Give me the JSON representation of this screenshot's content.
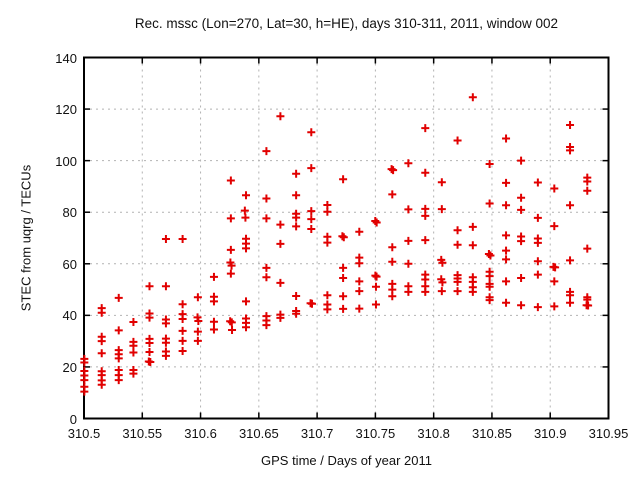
{
  "title": "Rec. mssc (Lon=270, Lat=30, h=HE), days 310-311, 2011, window 002",
  "x_axis": {
    "label": "GPS time / Days of year 2011",
    "min": 310.5,
    "max": 310.95,
    "tick_labels": [
      "310.5",
      "310.55",
      "310.6",
      "310.65",
      "310.7",
      "310.75",
      "310.8",
      "310.85",
      "310.9",
      "310.95"
    ],
    "tick_values": [
      310.5,
      310.55,
      310.6,
      310.65,
      310.7,
      310.75,
      310.8,
      310.85,
      310.9,
      310.95
    ]
  },
  "y_axis": {
    "label": "STEC from uqrg / TECUs",
    "min": 0,
    "max": 140,
    "tick_labels": [
      "0",
      "20",
      "40",
      "60",
      "80",
      "100",
      "120",
      "140"
    ],
    "tick_values": [
      0,
      20,
      40,
      60,
      80,
      100,
      120,
      140
    ]
  },
  "colors": {
    "marker": "#e10000",
    "grid": "#b2b2b2",
    "axis": "#000000",
    "background": "#ffffff",
    "text": "#111111"
  },
  "chart_data": {
    "type": "scatter",
    "marker": "plus",
    "title": "Rec. mssc (Lon=270, Lat=30, h=HE), days 310-311, 2011, window 002",
    "xlabel": "GPS time / Days of year 2011",
    "ylabel": "STEC from uqrg / TECUs",
    "xlim": [
      310.5,
      310.95
    ],
    "ylim": [
      0,
      140
    ],
    "grid": true,
    "legend": "none",
    "points": [
      [
        310.5003,
        23.1
      ],
      [
        310.5003,
        21.7
      ],
      [
        310.5003,
        18.4
      ],
      [
        310.5003,
        16.7
      ],
      [
        310.5003,
        14.9
      ],
      [
        310.5003,
        12.3
      ],
      [
        310.5003,
        10.4
      ],
      [
        310.5152,
        42.8
      ],
      [
        310.5152,
        41.0
      ],
      [
        310.5152,
        31.7
      ],
      [
        310.5152,
        30.0
      ],
      [
        310.5152,
        25.3
      ],
      [
        310.5152,
        18.3
      ],
      [
        310.5152,
        16.8
      ],
      [
        310.5152,
        14.8
      ],
      [
        310.5152,
        13.1
      ],
      [
        310.5298,
        46.8
      ],
      [
        310.5298,
        34.2
      ],
      [
        310.5298,
        26.5
      ],
      [
        310.5298,
        24.9
      ],
      [
        310.5298,
        23.3
      ],
      [
        310.5298,
        18.8
      ],
      [
        310.5298,
        16.8
      ],
      [
        310.5298,
        14.9
      ],
      [
        310.5424,
        37.4
      ],
      [
        310.5424,
        29.7
      ],
      [
        310.5424,
        28.2
      ],
      [
        310.5424,
        25.6
      ],
      [
        310.5424,
        18.8
      ],
      [
        310.5424,
        17.4
      ],
      [
        310.5562,
        51.3
      ],
      [
        310.5562,
        40.7
      ],
      [
        310.5562,
        39.1
      ],
      [
        310.5562,
        30.9
      ],
      [
        310.5562,
        29.3
      ],
      [
        310.5562,
        25.8
      ],
      [
        310.5556,
        22.1
      ],
      [
        310.5569,
        21.9
      ],
      [
        310.5703,
        69.6
      ],
      [
        310.5703,
        51.3
      ],
      [
        310.5703,
        38.4
      ],
      [
        310.5703,
        36.9
      ],
      [
        310.5703,
        31.0
      ],
      [
        310.5703,
        29.4
      ],
      [
        310.5703,
        26.0
      ],
      [
        310.5703,
        24.3
      ],
      [
        310.5846,
        69.6
      ],
      [
        310.5846,
        44.3
      ],
      [
        310.5846,
        40.5
      ],
      [
        310.5846,
        38.6
      ],
      [
        310.5846,
        34.0
      ],
      [
        310.5846,
        30.1
      ],
      [
        310.5846,
        26.2
      ],
      [
        310.5977,
        47.0
      ],
      [
        310.5974,
        39.2
      ],
      [
        310.5981,
        37.8
      ],
      [
        310.5977,
        33.7
      ],
      [
        310.5977,
        30.1
      ],
      [
        310.6115,
        54.9
      ],
      [
        310.6115,
        47.2
      ],
      [
        310.6115,
        45.4
      ],
      [
        310.6115,
        37.5
      ],
      [
        310.6115,
        34.5
      ],
      [
        310.626,
        92.3
      ],
      [
        310.626,
        77.6
      ],
      [
        310.626,
        65.4
      ],
      [
        310.6256,
        60.5
      ],
      [
        310.6266,
        59.3
      ],
      [
        310.626,
        56.2
      ],
      [
        310.6254,
        37.7
      ],
      [
        310.6268,
        37.3
      ],
      [
        310.627,
        34.3
      ],
      [
        310.639,
        86.6
      ],
      [
        310.638,
        80.6
      ],
      [
        310.6385,
        77.9
      ],
      [
        310.639,
        69.7
      ],
      [
        310.639,
        67.8
      ],
      [
        310.639,
        66.0
      ],
      [
        310.639,
        45.4
      ],
      [
        310.639,
        38.8
      ],
      [
        310.639,
        37.1
      ],
      [
        310.639,
        35.4
      ],
      [
        310.6565,
        103.7
      ],
      [
        310.6565,
        85.3
      ],
      [
        310.6565,
        77.6
      ],
      [
        310.6565,
        58.4
      ],
      [
        310.6565,
        54.8
      ],
      [
        310.6565,
        39.7
      ],
      [
        310.6565,
        38.0
      ],
      [
        310.6565,
        36.2
      ],
      [
        310.6685,
        117.2
      ],
      [
        310.6685,
        75.2
      ],
      [
        310.6685,
        67.7
      ],
      [
        310.6685,
        52.6
      ],
      [
        310.6685,
        40.3
      ],
      [
        310.6685,
        39.0
      ],
      [
        310.682,
        94.9
      ],
      [
        310.682,
        86.6
      ],
      [
        310.682,
        79.4
      ],
      [
        310.682,
        77.9
      ],
      [
        310.682,
        74.5
      ],
      [
        310.682,
        47.5
      ],
      [
        310.682,
        41.7
      ],
      [
        310.682,
        40.6
      ],
      [
        310.695,
        111.0
      ],
      [
        310.695,
        97.1
      ],
      [
        310.695,
        80.4
      ],
      [
        310.695,
        77.3
      ],
      [
        310.695,
        73.5
      ],
      [
        310.6944,
        44.7
      ],
      [
        310.6956,
        44.5
      ],
      [
        310.7088,
        82.8
      ],
      [
        310.7088,
        80.2
      ],
      [
        310.7088,
        70.5
      ],
      [
        310.7088,
        68.2
      ],
      [
        310.7088,
        47.8
      ],
      [
        310.7088,
        44.2
      ],
      [
        310.7088,
        42.3
      ],
      [
        310.7223,
        92.8
      ],
      [
        310.7217,
        70.7
      ],
      [
        310.7229,
        70.3
      ],
      [
        310.7223,
        58.4
      ],
      [
        310.7223,
        54.5
      ],
      [
        310.7223,
        47.4
      ],
      [
        310.7223,
        42.5
      ],
      [
        310.7362,
        72.4
      ],
      [
        310.7362,
        62.4
      ],
      [
        310.7362,
        60.2
      ],
      [
        310.7362,
        53.2
      ],
      [
        310.7362,
        49.4
      ],
      [
        310.7362,
        42.6
      ],
      [
        310.7499,
        76.6
      ],
      [
        310.7511,
        76.0
      ],
      [
        310.75,
        55.4
      ],
      [
        310.751,
        55.0
      ],
      [
        310.7505,
        51.1
      ],
      [
        310.7505,
        44.2
      ],
      [
        310.7639,
        96.7
      ],
      [
        310.7652,
        96.3
      ],
      [
        310.7645,
        86.9
      ],
      [
        310.7645,
        66.4
      ],
      [
        310.7645,
        60.8
      ],
      [
        310.7645,
        52.2
      ],
      [
        310.7645,
        50.0
      ],
      [
        310.7645,
        47.4
      ],
      [
        310.7783,
        99.0
      ],
      [
        310.7783,
        81.1
      ],
      [
        310.7783,
        68.9
      ],
      [
        310.7783,
        60.0
      ],
      [
        310.7783,
        51.3
      ],
      [
        310.7783,
        49.1
      ],
      [
        310.7928,
        112.6
      ],
      [
        310.7928,
        95.3
      ],
      [
        310.7928,
        81.3
      ],
      [
        310.7928,
        78.6
      ],
      [
        310.7928,
        69.2
      ],
      [
        310.7928,
        55.8
      ],
      [
        310.7928,
        53.9
      ],
      [
        310.7928,
        51.3
      ],
      [
        310.7928,
        49.1
      ],
      [
        310.807,
        91.6
      ],
      [
        310.807,
        81.2
      ],
      [
        310.8065,
        61.5
      ],
      [
        310.8075,
        60.4
      ],
      [
        310.8065,
        54.0
      ],
      [
        310.8075,
        52.8
      ],
      [
        310.807,
        49.4
      ],
      [
        310.8205,
        107.8
      ],
      [
        310.8205,
        73.0
      ],
      [
        310.8205,
        67.4
      ],
      [
        310.8205,
        55.6
      ],
      [
        310.8205,
        54.3
      ],
      [
        310.8205,
        53.0
      ],
      [
        310.8205,
        49.4
      ],
      [
        310.8336,
        124.6
      ],
      [
        310.8336,
        74.3
      ],
      [
        310.8336,
        67.2
      ],
      [
        310.8336,
        54.8
      ],
      [
        310.8336,
        53.0
      ],
      [
        310.8336,
        50.9
      ],
      [
        310.8336,
        49.1
      ],
      [
        310.848,
        98.7
      ],
      [
        310.848,
        83.4
      ],
      [
        310.8474,
        63.8
      ],
      [
        310.8487,
        63.2
      ],
      [
        310.848,
        56.9
      ],
      [
        310.848,
        55.2
      ],
      [
        310.848,
        52.2
      ],
      [
        310.848,
        51.1
      ],
      [
        310.848,
        47.0
      ],
      [
        310.848,
        45.9
      ],
      [
        310.8621,
        108.6
      ],
      [
        310.8621,
        91.4
      ],
      [
        310.8621,
        82.7
      ],
      [
        310.8621,
        71.0
      ],
      [
        310.8621,
        65.1
      ],
      [
        310.8621,
        61.7
      ],
      [
        310.8621,
        53.2
      ],
      [
        310.8621,
        44.9
      ],
      [
        310.875,
        100.0
      ],
      [
        310.875,
        85.6
      ],
      [
        310.875,
        80.9
      ],
      [
        310.875,
        70.6
      ],
      [
        310.875,
        68.8
      ],
      [
        310.875,
        54.5
      ],
      [
        310.875,
        43.9
      ],
      [
        310.8894,
        91.5
      ],
      [
        310.8894,
        77.8
      ],
      [
        310.8894,
        69.8
      ],
      [
        310.8894,
        68.1
      ],
      [
        310.8894,
        61.0
      ],
      [
        310.8894,
        55.8
      ],
      [
        310.8894,
        43.2
      ],
      [
        310.9035,
        89.2
      ],
      [
        310.9035,
        74.6
      ],
      [
        310.9028,
        58.8
      ],
      [
        310.9042,
        58.6
      ],
      [
        310.9035,
        53.2
      ],
      [
        310.9035,
        43.5
      ],
      [
        310.917,
        113.8
      ],
      [
        310.917,
        105.3
      ],
      [
        310.917,
        104.0
      ],
      [
        310.917,
        82.7
      ],
      [
        310.917,
        61.3
      ],
      [
        310.917,
        49.1
      ],
      [
        310.917,
        47.8
      ],
      [
        310.917,
        44.9
      ],
      [
        310.9318,
        93.4
      ],
      [
        310.9318,
        91.9
      ],
      [
        310.9318,
        88.3
      ],
      [
        310.9318,
        65.9
      ],
      [
        310.9318,
        47.0
      ],
      [
        310.9318,
        46.1
      ],
      [
        310.9312,
        43.9
      ],
      [
        310.9325,
        43.8
      ]
    ]
  }
}
